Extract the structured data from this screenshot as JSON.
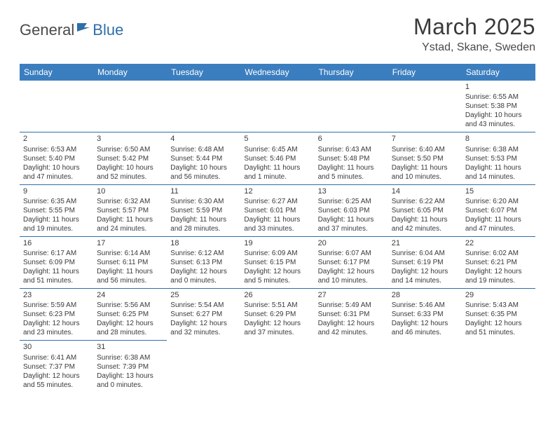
{
  "logo": {
    "dark": "General",
    "blue": "Blue"
  },
  "title": "March 2025",
  "location": "Ystad, Skane, Sweden",
  "header_color": "#3b7ebf",
  "border_color": "#2f6fa8",
  "weekdays": [
    "Sunday",
    "Monday",
    "Tuesday",
    "Wednesday",
    "Thursday",
    "Friday",
    "Saturday"
  ],
  "weeks": [
    [
      null,
      null,
      null,
      null,
      null,
      null,
      {
        "n": "1",
        "sunrise": "6:55 AM",
        "sunset": "5:38 PM",
        "daylight": "10 hours and 43 minutes."
      }
    ],
    [
      {
        "n": "2",
        "sunrise": "6:53 AM",
        "sunset": "5:40 PM",
        "daylight": "10 hours and 47 minutes."
      },
      {
        "n": "3",
        "sunrise": "6:50 AM",
        "sunset": "5:42 PM",
        "daylight": "10 hours and 52 minutes."
      },
      {
        "n": "4",
        "sunrise": "6:48 AM",
        "sunset": "5:44 PM",
        "daylight": "10 hours and 56 minutes."
      },
      {
        "n": "5",
        "sunrise": "6:45 AM",
        "sunset": "5:46 PM",
        "daylight": "11 hours and 1 minute."
      },
      {
        "n": "6",
        "sunrise": "6:43 AM",
        "sunset": "5:48 PM",
        "daylight": "11 hours and 5 minutes."
      },
      {
        "n": "7",
        "sunrise": "6:40 AM",
        "sunset": "5:50 PM",
        "daylight": "11 hours and 10 minutes."
      },
      {
        "n": "8",
        "sunrise": "6:38 AM",
        "sunset": "5:53 PM",
        "daylight": "11 hours and 14 minutes."
      }
    ],
    [
      {
        "n": "9",
        "sunrise": "6:35 AM",
        "sunset": "5:55 PM",
        "daylight": "11 hours and 19 minutes."
      },
      {
        "n": "10",
        "sunrise": "6:32 AM",
        "sunset": "5:57 PM",
        "daylight": "11 hours and 24 minutes."
      },
      {
        "n": "11",
        "sunrise": "6:30 AM",
        "sunset": "5:59 PM",
        "daylight": "11 hours and 28 minutes."
      },
      {
        "n": "12",
        "sunrise": "6:27 AM",
        "sunset": "6:01 PM",
        "daylight": "11 hours and 33 minutes."
      },
      {
        "n": "13",
        "sunrise": "6:25 AM",
        "sunset": "6:03 PM",
        "daylight": "11 hours and 37 minutes."
      },
      {
        "n": "14",
        "sunrise": "6:22 AM",
        "sunset": "6:05 PM",
        "daylight": "11 hours and 42 minutes."
      },
      {
        "n": "15",
        "sunrise": "6:20 AM",
        "sunset": "6:07 PM",
        "daylight": "11 hours and 47 minutes."
      }
    ],
    [
      {
        "n": "16",
        "sunrise": "6:17 AM",
        "sunset": "6:09 PM",
        "daylight": "11 hours and 51 minutes."
      },
      {
        "n": "17",
        "sunrise": "6:14 AM",
        "sunset": "6:11 PM",
        "daylight": "11 hours and 56 minutes."
      },
      {
        "n": "18",
        "sunrise": "6:12 AM",
        "sunset": "6:13 PM",
        "daylight": "12 hours and 0 minutes."
      },
      {
        "n": "19",
        "sunrise": "6:09 AM",
        "sunset": "6:15 PM",
        "daylight": "12 hours and 5 minutes."
      },
      {
        "n": "20",
        "sunrise": "6:07 AM",
        "sunset": "6:17 PM",
        "daylight": "12 hours and 10 minutes."
      },
      {
        "n": "21",
        "sunrise": "6:04 AM",
        "sunset": "6:19 PM",
        "daylight": "12 hours and 14 minutes."
      },
      {
        "n": "22",
        "sunrise": "6:02 AM",
        "sunset": "6:21 PM",
        "daylight": "12 hours and 19 minutes."
      }
    ],
    [
      {
        "n": "23",
        "sunrise": "5:59 AM",
        "sunset": "6:23 PM",
        "daylight": "12 hours and 23 minutes."
      },
      {
        "n": "24",
        "sunrise": "5:56 AM",
        "sunset": "6:25 PM",
        "daylight": "12 hours and 28 minutes."
      },
      {
        "n": "25",
        "sunrise": "5:54 AM",
        "sunset": "6:27 PM",
        "daylight": "12 hours and 32 minutes."
      },
      {
        "n": "26",
        "sunrise": "5:51 AM",
        "sunset": "6:29 PM",
        "daylight": "12 hours and 37 minutes."
      },
      {
        "n": "27",
        "sunrise": "5:49 AM",
        "sunset": "6:31 PM",
        "daylight": "12 hours and 42 minutes."
      },
      {
        "n": "28",
        "sunrise": "5:46 AM",
        "sunset": "6:33 PM",
        "daylight": "12 hours and 46 minutes."
      },
      {
        "n": "29",
        "sunrise": "5:43 AM",
        "sunset": "6:35 PM",
        "daylight": "12 hours and 51 minutes."
      }
    ],
    [
      {
        "n": "30",
        "sunrise": "6:41 AM",
        "sunset": "7:37 PM",
        "daylight": "12 hours and 55 minutes."
      },
      {
        "n": "31",
        "sunrise": "6:38 AM",
        "sunset": "7:39 PM",
        "daylight": "13 hours and 0 minutes."
      },
      null,
      null,
      null,
      null,
      null
    ]
  ],
  "labels": {
    "sunrise": "Sunrise: ",
    "sunset": "Sunset: ",
    "daylight": "Daylight: "
  }
}
